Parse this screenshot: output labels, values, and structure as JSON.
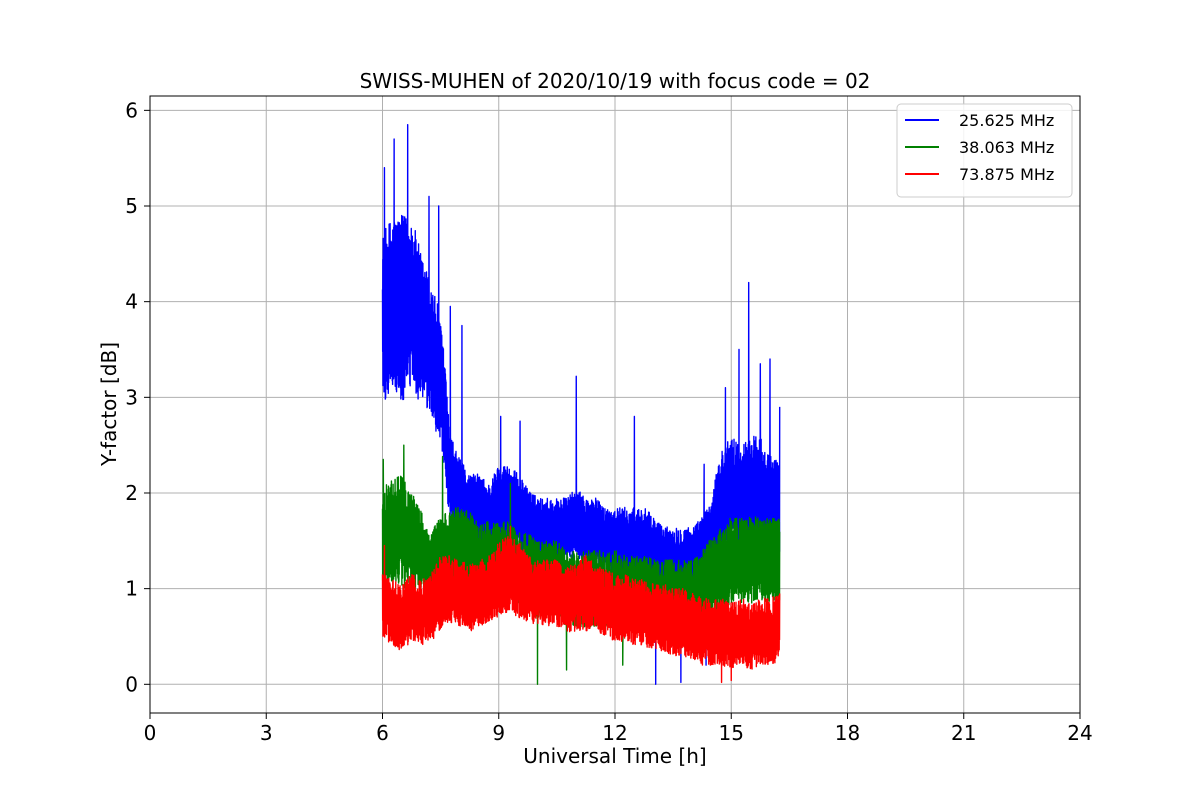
{
  "chart_data": {
    "type": "line",
    "title": "SWISS-MUHEN of 2020/10/19 with focus code = 02",
    "xlabel": "Universal Time [h]",
    "ylabel": "Y-factor [dB]",
    "xlim": [
      0,
      24
    ],
    "ylim": [
      -0.3,
      6.15
    ],
    "xticks": [
      0,
      3,
      6,
      9,
      12,
      15,
      18,
      21,
      24
    ],
    "yticks": [
      0,
      1,
      2,
      3,
      4,
      5,
      6
    ],
    "grid": true,
    "legend_position": "top-right",
    "series": [
      {
        "name": "25.625 MHz",
        "color": "#0000ff",
        "x": [
          6.0,
          6.25,
          6.5,
          6.75,
          7.0,
          7.25,
          7.5,
          7.75,
          8.0,
          8.25,
          8.5,
          8.75,
          9.0,
          9.25,
          9.5,
          9.75,
          10.0,
          10.25,
          10.5,
          10.75,
          11.0,
          11.25,
          11.5,
          11.75,
          12.0,
          12.25,
          12.5,
          12.75,
          13.0,
          13.25,
          13.5,
          13.75,
          14.0,
          14.25,
          14.5,
          14.75,
          15.0,
          15.25,
          15.5,
          15.75,
          16.0,
          16.25
        ],
        "center": [
          3.8,
          4.0,
          3.9,
          4.0,
          3.7,
          3.5,
          3.2,
          2.1,
          1.9,
          1.8,
          1.8,
          1.7,
          1.9,
          1.9,
          1.8,
          1.7,
          1.6,
          1.6,
          1.6,
          1.6,
          1.7,
          1.6,
          1.6,
          1.5,
          1.5,
          1.5,
          1.5,
          1.5,
          1.4,
          1.3,
          1.3,
          1.3,
          1.3,
          1.4,
          1.5,
          1.9,
          2.0,
          1.9,
          2.0,
          2.0,
          1.9,
          1.8
        ],
        "amp": [
          0.9,
          0.9,
          1.0,
          0.9,
          0.8,
          0.7,
          0.7,
          0.5,
          0.45,
          0.4,
          0.4,
          0.4,
          0.4,
          0.4,
          0.4,
          0.35,
          0.35,
          0.35,
          0.35,
          0.35,
          0.35,
          0.35,
          0.35,
          0.35,
          0.35,
          0.35,
          0.35,
          0.35,
          0.35,
          0.35,
          0.35,
          0.35,
          0.35,
          0.35,
          0.45,
          0.6,
          0.6,
          0.6,
          0.6,
          0.6,
          0.55,
          0.5
        ],
        "spikes": [
          [
            6.05,
            5.4
          ],
          [
            6.3,
            5.7
          ],
          [
            6.65,
            5.85
          ],
          [
            7.2,
            5.1
          ],
          [
            7.45,
            5.0
          ],
          [
            7.75,
            3.95
          ],
          [
            8.05,
            3.75
          ],
          [
            9.05,
            2.8
          ],
          [
            9.55,
            2.75
          ],
          [
            11.0,
            3.22
          ],
          [
            12.5,
            2.8
          ],
          [
            14.3,
            2.3
          ],
          [
            14.85,
            3.1
          ],
          [
            15.2,
            3.5
          ],
          [
            15.45,
            4.2
          ],
          [
            15.75,
            3.35
          ],
          [
            16.0,
            3.4
          ],
          [
            16.25,
            2.9
          ]
        ],
        "dips": [
          [
            13.05,
            0.0
          ],
          [
            13.7,
            0.02
          ],
          [
            14.35,
            0.2
          ]
        ]
      },
      {
        "name": "38.063 MHz",
        "color": "#008000",
        "x": [
          6.0,
          6.25,
          6.5,
          6.75,
          7.0,
          7.25,
          7.5,
          7.75,
          8.0,
          8.25,
          8.5,
          8.75,
          9.0,
          9.25,
          9.5,
          9.75,
          10.0,
          10.25,
          10.5,
          10.75,
          11.0,
          11.25,
          11.5,
          11.75,
          12.0,
          12.25,
          12.5,
          12.75,
          13.0,
          13.25,
          13.5,
          13.75,
          14.0,
          14.25,
          14.5,
          14.75,
          15.0,
          15.25,
          15.5,
          15.75,
          16.0,
          16.25
        ],
        "center": [
          1.5,
          1.6,
          1.6,
          1.5,
          1.4,
          1.2,
          1.3,
          1.4,
          1.4,
          1.4,
          1.3,
          1.3,
          1.3,
          1.3,
          1.2,
          1.2,
          1.1,
          1.1,
          1.1,
          1.0,
          1.0,
          1.0,
          1.0,
          1.0,
          1.0,
          0.95,
          0.95,
          0.95,
          0.9,
          0.9,
          0.9,
          0.9,
          0.9,
          1.0,
          1.1,
          1.2,
          1.3,
          1.3,
          1.3,
          1.3,
          1.3,
          1.3
        ],
        "amp": [
          0.55,
          0.55,
          0.6,
          0.5,
          0.45,
          0.4,
          0.45,
          0.45,
          0.45,
          0.4,
          0.4,
          0.4,
          0.4,
          0.4,
          0.4,
          0.4,
          0.4,
          0.4,
          0.4,
          0.4,
          0.4,
          0.4,
          0.4,
          0.4,
          0.4,
          0.4,
          0.4,
          0.4,
          0.4,
          0.4,
          0.4,
          0.4,
          0.4,
          0.4,
          0.45,
          0.45,
          0.45,
          0.45,
          0.45,
          0.45,
          0.45,
          0.45
        ],
        "spikes": [
          [
            6.02,
            2.35
          ],
          [
            6.55,
            2.5
          ],
          [
            7.55,
            2.38
          ],
          [
            9.3,
            2.1
          ]
        ],
        "dips": [
          [
            10.0,
            0.0
          ],
          [
            10.75,
            0.15
          ],
          [
            12.2,
            0.2
          ]
        ]
      },
      {
        "name": "73.875 MHz",
        "color": "#ff0000",
        "x": [
          6.0,
          6.25,
          6.5,
          6.75,
          7.0,
          7.25,
          7.5,
          7.75,
          8.0,
          8.25,
          8.5,
          8.75,
          9.0,
          9.25,
          9.5,
          9.75,
          10.0,
          10.25,
          10.5,
          10.75,
          11.0,
          11.25,
          11.5,
          11.75,
          12.0,
          12.25,
          12.5,
          12.75,
          13.0,
          13.25,
          13.5,
          13.75,
          14.0,
          14.25,
          14.5,
          14.75,
          15.0,
          15.25,
          15.5,
          15.75,
          16.0,
          16.25
        ],
        "center": [
          0.85,
          0.75,
          0.7,
          0.8,
          0.75,
          0.8,
          0.95,
          1.0,
          0.95,
          0.9,
          0.95,
          1.0,
          1.1,
          1.15,
          1.1,
          1.0,
          0.95,
          0.95,
          0.95,
          0.9,
          0.9,
          0.95,
          0.9,
          0.85,
          0.8,
          0.8,
          0.75,
          0.75,
          0.7,
          0.7,
          0.65,
          0.65,
          0.6,
          0.55,
          0.55,
          0.55,
          0.5,
          0.55,
          0.5,
          0.55,
          0.55,
          0.6
        ],
        "amp": [
          0.35,
          0.35,
          0.35,
          0.35,
          0.35,
          0.35,
          0.4,
          0.35,
          0.35,
          0.35,
          0.35,
          0.35,
          0.4,
          0.4,
          0.4,
          0.35,
          0.35,
          0.35,
          0.35,
          0.35,
          0.35,
          0.4,
          0.35,
          0.35,
          0.35,
          0.35,
          0.35,
          0.35,
          0.35,
          0.35,
          0.35,
          0.35,
          0.35,
          0.35,
          0.35,
          0.35,
          0.35,
          0.35,
          0.35,
          0.35,
          0.35,
          0.35
        ],
        "spikes": [
          [
            6.05,
            1.45
          ],
          [
            9.3,
            1.65
          ]
        ],
        "dips": [
          [
            14.75,
            0.02
          ],
          [
            15.0,
            0.04
          ]
        ]
      }
    ]
  }
}
